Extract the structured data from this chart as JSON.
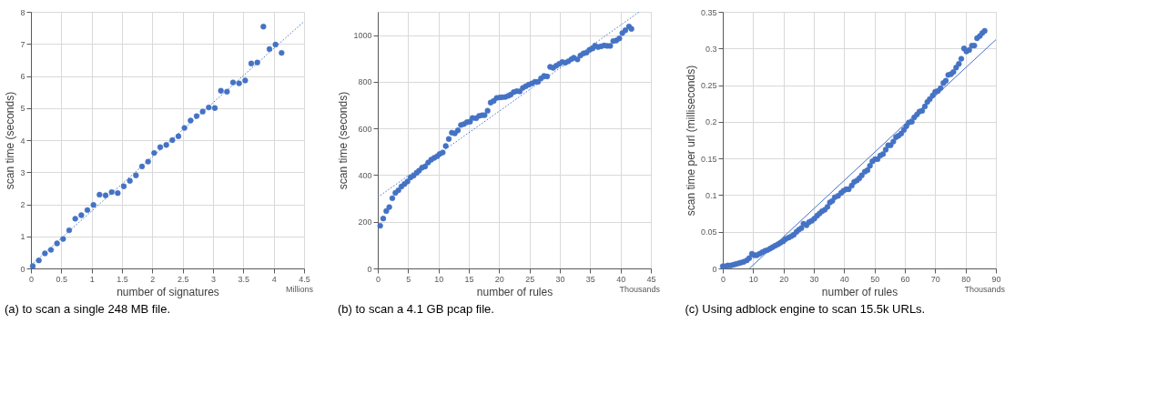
{
  "chart_data": [
    {
      "type": "scatter",
      "title": "(a) to scan a single 248 MB file.",
      "xlabel": "number of signatures",
      "ylabel": "scan time (seconds)",
      "annotations": [
        "Millions"
      ],
      "xlim": [
        0,
        4.5
      ],
      "xticks": [
        0,
        0.5,
        1,
        1.5,
        2,
        2.5,
        3,
        3.5,
        4,
        4.5
      ],
      "ylim": [
        0,
        8
      ],
      "yticks": [
        0,
        1,
        2,
        3,
        4,
        5,
        6,
        7,
        8
      ],
      "grid": true,
      "marker": "circle",
      "series": [
        {
          "color": "#4472c4",
          "x": [
            0.03,
            0.13,
            0.23,
            0.33,
            0.43,
            0.53,
            0.63,
            0.73,
            0.83,
            0.93,
            1.03,
            1.13,
            1.23,
            1.33,
            1.43,
            1.53,
            1.63,
            1.73,
            1.83,
            1.93,
            2.03,
            2.13,
            2.23,
            2.33,
            2.43,
            2.53,
            2.63,
            2.73,
            2.83,
            2.93,
            3.03,
            3.13,
            3.23,
            3.33,
            3.43,
            3.53,
            3.63,
            3.73,
            3.83,
            3.93,
            4.03,
            4.13
          ],
          "values": [
            0.07,
            0.25,
            0.47,
            0.58,
            0.78,
            0.92,
            1.19,
            1.55,
            1.66,
            1.82,
            1.98,
            2.3,
            2.28,
            2.38,
            2.35,
            2.56,
            2.73,
            2.9,
            3.18,
            3.33,
            3.6,
            3.78,
            3.85,
            4.0,
            4.12,
            4.38,
            4.61,
            4.75,
            4.89,
            5.02,
            5.0,
            5.54,
            5.51,
            5.8,
            5.77,
            5.86,
            6.39,
            6.42,
            7.54,
            6.84,
            6.98,
            6.72
          ]
        },
        {
          "type": "line",
          "color": "#4472c4",
          "line_style": "dotted",
          "marker": "none",
          "x": [
            0,
            4.5
          ],
          "values": [
            0.1,
            7.7
          ]
        }
      ]
    },
    {
      "type": "scatter",
      "title": "(b) to scan a 4.1 GB pcap file.",
      "xlabel": "number of rules",
      "ylabel": "scan time (seconds)",
      "annotations": [
        "Thousands"
      ],
      "xlim": [
        0,
        45
      ],
      "xticks": [
        0,
        5,
        10,
        15,
        20,
        25,
        30,
        35,
        40,
        45
      ],
      "ylim": [
        0,
        1100
      ],
      "yticks": [
        0,
        200,
        400,
        600,
        800,
        1000
      ],
      "grid": true,
      "marker": "circle",
      "series": [
        {
          "color": "#4472c4",
          "x": [
            0.4,
            0.9,
            1.4,
            1.9,
            2.4,
            2.9,
            3.4,
            3.9,
            4.4,
            4.9,
            5.4,
            5.9,
            6.4,
            6.8,
            7.3,
            7.8,
            8.3,
            8.8,
            9.3,
            9.8,
            10.2,
            10.7,
            11.2,
            11.7,
            12.2,
            12.7,
            13.2,
            13.7,
            14.2,
            14.7,
            15.2,
            15.6,
            16.2,
            16.7,
            17.2,
            17.6,
            18.1,
            18.6,
            19.1,
            19.6,
            20.1,
            20.5,
            21.0,
            21.5,
            21.9,
            22.4,
            22.9,
            23.4,
            23.9,
            24.4,
            24.9,
            25.4,
            25.9,
            26.4,
            26.9,
            27.4,
            27.9,
            28.4,
            28.9,
            29.4,
            29.9,
            30.4,
            30.9,
            31.4,
            31.9,
            32.3,
            32.9,
            33.4,
            33.9,
            34.4,
            34.9,
            35.4,
            35.8,
            36.3,
            36.8,
            37.3,
            37.8,
            38.3,
            38.8,
            39.3,
            39.8,
            40.3,
            40.8,
            41.4,
            41.8
          ],
          "values": [
            183,
            214,
            246,
            263,
            301,
            324,
            335,
            351,
            362,
            373,
            390,
            398,
            410,
            419,
            432,
            437,
            454,
            466,
            474,
            481,
            491,
            497,
            525,
            555,
            582,
            579,
            592,
            615,
            619,
            627,
            629,
            645,
            644,
            654,
            657,
            657,
            676,
            711,
            718,
            731,
            733,
            734,
            735,
            740,
            745,
            756,
            760,
            759,
            774,
            781,
            788,
            793,
            800,
            800,
            815,
            825,
            823,
            864,
            860,
            869,
            877,
            885,
            882,
            888,
            897,
            903,
            896,
            913,
            922,
            925,
            937,
            943,
            955,
            949,
            952,
            956,
            954,
            954,
            975,
            977,
            986,
            1009,
            1021,
            1037,
            1027
          ]
        },
        {
          "type": "line",
          "color": "#4472c4",
          "line_style": "dotted",
          "marker": "none",
          "x": [
            0,
            43.1
          ],
          "values": [
            305,
            1100
          ]
        }
      ]
    },
    {
      "type": "scatter",
      "title": "(c) Using adblock engine to scan 15.5k URLs.",
      "xlabel": "number of rules",
      "ylabel": "scan time per url (milliseconds)",
      "annotations": [
        "Thousands"
      ],
      "xlim": [
        0,
        90
      ],
      "xticks": [
        0,
        10,
        20,
        30,
        40,
        50,
        60,
        70,
        80,
        90
      ],
      "ylim": [
        0,
        0.35
      ],
      "yticks": [
        0,
        0.05,
        0.1,
        0.15,
        0.2,
        0.25,
        0.3,
        0.35
      ],
      "grid": true,
      "marker": "circle",
      "series": [
        {
          "color": "#4472c4",
          "x": [
            0,
            0.8,
            1.7,
            2.6,
            3.5,
            4.3,
            5.2,
            6.0,
            6.9,
            7.9,
            8.7,
            9.6,
            10.4,
            11.2,
            12.1,
            13.0,
            13.9,
            14.7,
            15.6,
            16.4,
            17.3,
            18.2,
            19.0,
            19.9,
            20.7,
            21.7,
            22.6,
            23.4,
            24.3,
            25.1,
            25.9,
            26.6,
            27.6,
            28.4,
            29.3,
            30.2,
            31.1,
            31.9,
            32.7,
            33.6,
            34.5,
            35.3,
            36.1,
            36.9,
            38.0,
            39.0,
            39.8,
            40.7,
            41.5,
            42.5,
            43.3,
            44.2,
            45.0,
            45.8,
            46.8,
            47.7,
            48.5,
            49.3,
            50.2,
            51.0,
            51.9,
            52.8,
            53.7,
            54.5,
            55.3,
            56.2,
            57.1,
            57.9,
            58.8,
            59.7,
            60.5,
            61.3,
            62.3,
            63.1,
            64.0,
            64.8,
            65.7,
            66.6,
            67.4,
            68.2,
            69.2,
            70.0,
            70.9,
            71.8,
            72.7,
            73.5,
            74.3,
            75.2,
            76.0,
            76.9,
            77.8,
            78.6,
            79.5,
            80.3,
            81.2,
            82.1,
            82.9,
            83.8,
            84.7,
            85.5,
            86.3
          ],
          "values": [
            0.003,
            0.003,
            0.004,
            0.004,
            0.005,
            0.006,
            0.007,
            0.008,
            0.009,
            0.011,
            0.014,
            0.02,
            0.018,
            0.018,
            0.02,
            0.022,
            0.024,
            0.025,
            0.027,
            0.029,
            0.031,
            0.033,
            0.035,
            0.037,
            0.04,
            0.042,
            0.044,
            0.046,
            0.05,
            0.053,
            0.055,
            0.061,
            0.059,
            0.063,
            0.065,
            0.068,
            0.072,
            0.075,
            0.078,
            0.08,
            0.084,
            0.09,
            0.092,
            0.097,
            0.099,
            0.103,
            0.106,
            0.108,
            0.108,
            0.113,
            0.118,
            0.12,
            0.123,
            0.127,
            0.132,
            0.134,
            0.14,
            0.146,
            0.149,
            0.149,
            0.154,
            0.156,
            0.162,
            0.168,
            0.168,
            0.173,
            0.179,
            0.181,
            0.184,
            0.189,
            0.194,
            0.199,
            0.2,
            0.206,
            0.21,
            0.214,
            0.215,
            0.221,
            0.227,
            0.231,
            0.236,
            0.241,
            0.242,
            0.246,
            0.253,
            0.256,
            0.264,
            0.265,
            0.268,
            0.274,
            0.279,
            0.286,
            0.3,
            0.296,
            0.298,
            0.304,
            0.304,
            0.314,
            0.317,
            0.321,
            0.324
          ]
        },
        {
          "type": "line",
          "color": "#4472c4",
          "line_style": "solid",
          "marker": "none",
          "x": [
            8.8,
            90
          ],
          "values": [
            0,
            0.312
          ]
        }
      ]
    }
  ]
}
